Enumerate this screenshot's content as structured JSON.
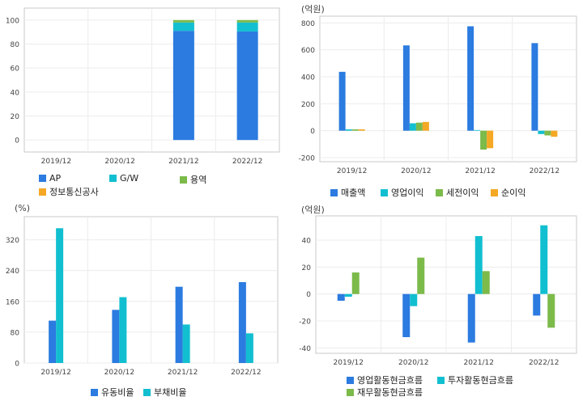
{
  "chart_data": [
    {
      "id": "chart1",
      "type": "bar",
      "stacked": true,
      "unit_label": "",
      "categories": [
        "2019/12",
        "2020/12",
        "2021/12",
        "2022/12"
      ],
      "series": [
        {
          "name": "AP",
          "color": "#2b7be0",
          "values": [
            0,
            0,
            91,
            90.5
          ]
        },
        {
          "name": "G/W",
          "color": "#12bfd0",
          "values": [
            0,
            0,
            7,
            7.5
          ]
        },
        {
          "name": "용역",
          "color": "#7cba4a",
          "values": [
            0,
            0,
            2,
            2
          ]
        },
        {
          "name": "정보통신공사",
          "color": "#f4a824",
          "values": [
            0,
            0,
            0,
            0
          ]
        }
      ],
      "yticks": [
        0,
        20,
        40,
        60,
        80,
        100
      ],
      "ylim": [
        -10,
        110
      ],
      "grid": true,
      "legend_position": "bottom"
    },
    {
      "id": "chart2",
      "type": "bar",
      "unit_label": "(억원)",
      "categories": [
        "2019/12",
        "2020/12",
        "2021/12",
        "2022/12"
      ],
      "series": [
        {
          "name": "매출액",
          "color": "#2b7be0",
          "values": [
            437,
            633,
            775,
            650
          ]
        },
        {
          "name": "영업이익",
          "color": "#12bfd0",
          "values": [
            10,
            55,
            5,
            -25
          ]
        },
        {
          "name": "세전이익",
          "color": "#7cba4a",
          "values": [
            10,
            60,
            -140,
            -35
          ]
        },
        {
          "name": "순이익",
          "color": "#f4a824",
          "values": [
            10,
            65,
            -130,
            -45
          ]
        }
      ],
      "yticks": [
        -200,
        0,
        200,
        400,
        600,
        800
      ],
      "ylim": [
        -230,
        850
      ],
      "grid": true,
      "legend_position": "bottom"
    },
    {
      "id": "chart3",
      "type": "bar",
      "unit_label": "(%)",
      "categories": [
        "2019/12",
        "2020/12",
        "2021/12",
        "2022/12"
      ],
      "series": [
        {
          "name": "유동비율",
          "color": "#2b7be0",
          "values": [
            110,
            138,
            198,
            210
          ]
        },
        {
          "name": "부채비율",
          "color": "#12bfd0",
          "values": [
            350,
            171,
            100,
            77
          ]
        }
      ],
      "yticks": [
        0,
        80,
        160,
        240,
        320
      ],
      "ylim": [
        0,
        380
      ],
      "grid": true,
      "legend_position": "bottom"
    },
    {
      "id": "chart4",
      "type": "bar",
      "unit_label": "(억원)",
      "categories": [
        "2019/12",
        "2020/12",
        "2021/12",
        "2022/12"
      ],
      "series": [
        {
          "name": "영업활동현금흐름",
          "color": "#2b7be0",
          "values": [
            -5,
            -32,
            -36,
            -16
          ]
        },
        {
          "name": "투자활동현금흐름",
          "color": "#12bfd0",
          "values": [
            -2,
            -9,
            43,
            51
          ]
        },
        {
          "name": "재무활동현금흐름",
          "color": "#7cba4a",
          "values": [
            16,
            27,
            17,
            -25
          ]
        }
      ],
      "yticks": [
        -40,
        -20,
        0,
        20,
        40
      ],
      "ylim": [
        -44,
        58
      ],
      "grid": true,
      "legend_position": "bottom"
    }
  ]
}
